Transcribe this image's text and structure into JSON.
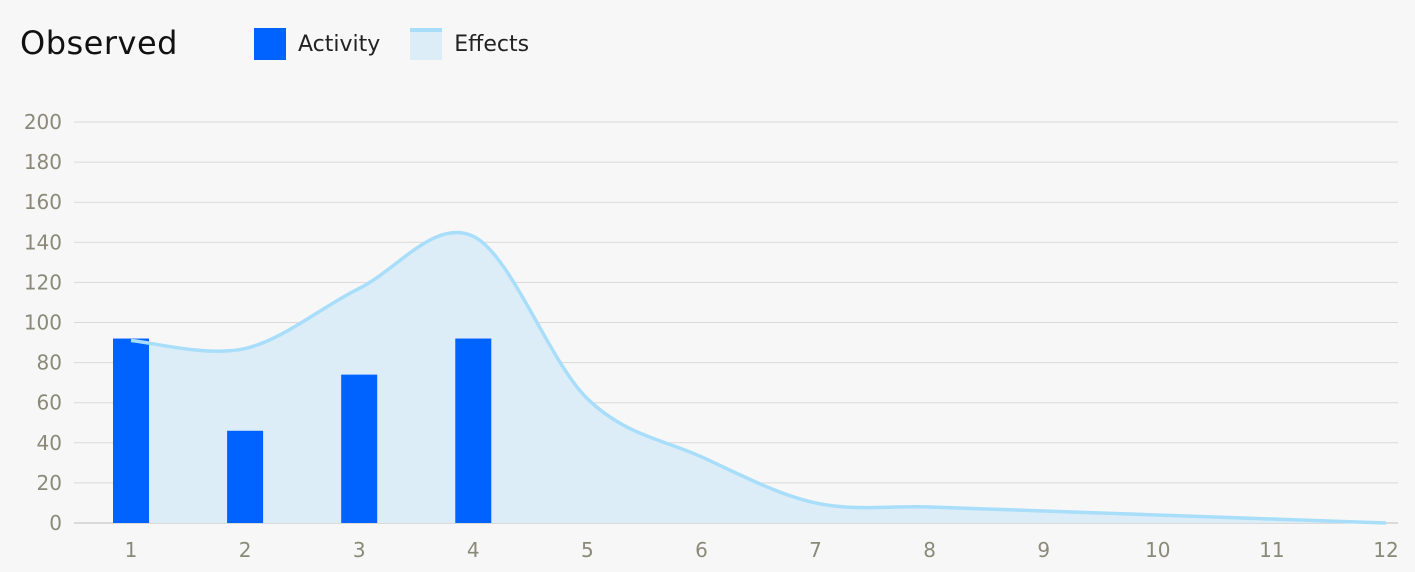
{
  "chart_data": {
    "type": "bar",
    "title": "Observed",
    "legend_placement": "top-left",
    "grid": true,
    "categories": [
      "1",
      "2",
      "3",
      "4",
      "5",
      "6",
      "7",
      "8",
      "9",
      "10",
      "11",
      "12"
    ],
    "ylim": [
      0,
      200
    ],
    "yticks": [
      0,
      20,
      40,
      60,
      80,
      100,
      120,
      140,
      160,
      180,
      200
    ],
    "series": [
      {
        "name": "Activity",
        "kind": "bar",
        "color": "#0062ff",
        "values": [
          92,
          46,
          74,
          92,
          0,
          0,
          0,
          0,
          0,
          0,
          0,
          0
        ]
      },
      {
        "name": "Effects",
        "kind": "area",
        "color": "#a8defa",
        "fill": "#dcedf7",
        "values": [
          91,
          87,
          117,
          143,
          62,
          33,
          10,
          8,
          6,
          4,
          2,
          0
        ]
      }
    ]
  }
}
